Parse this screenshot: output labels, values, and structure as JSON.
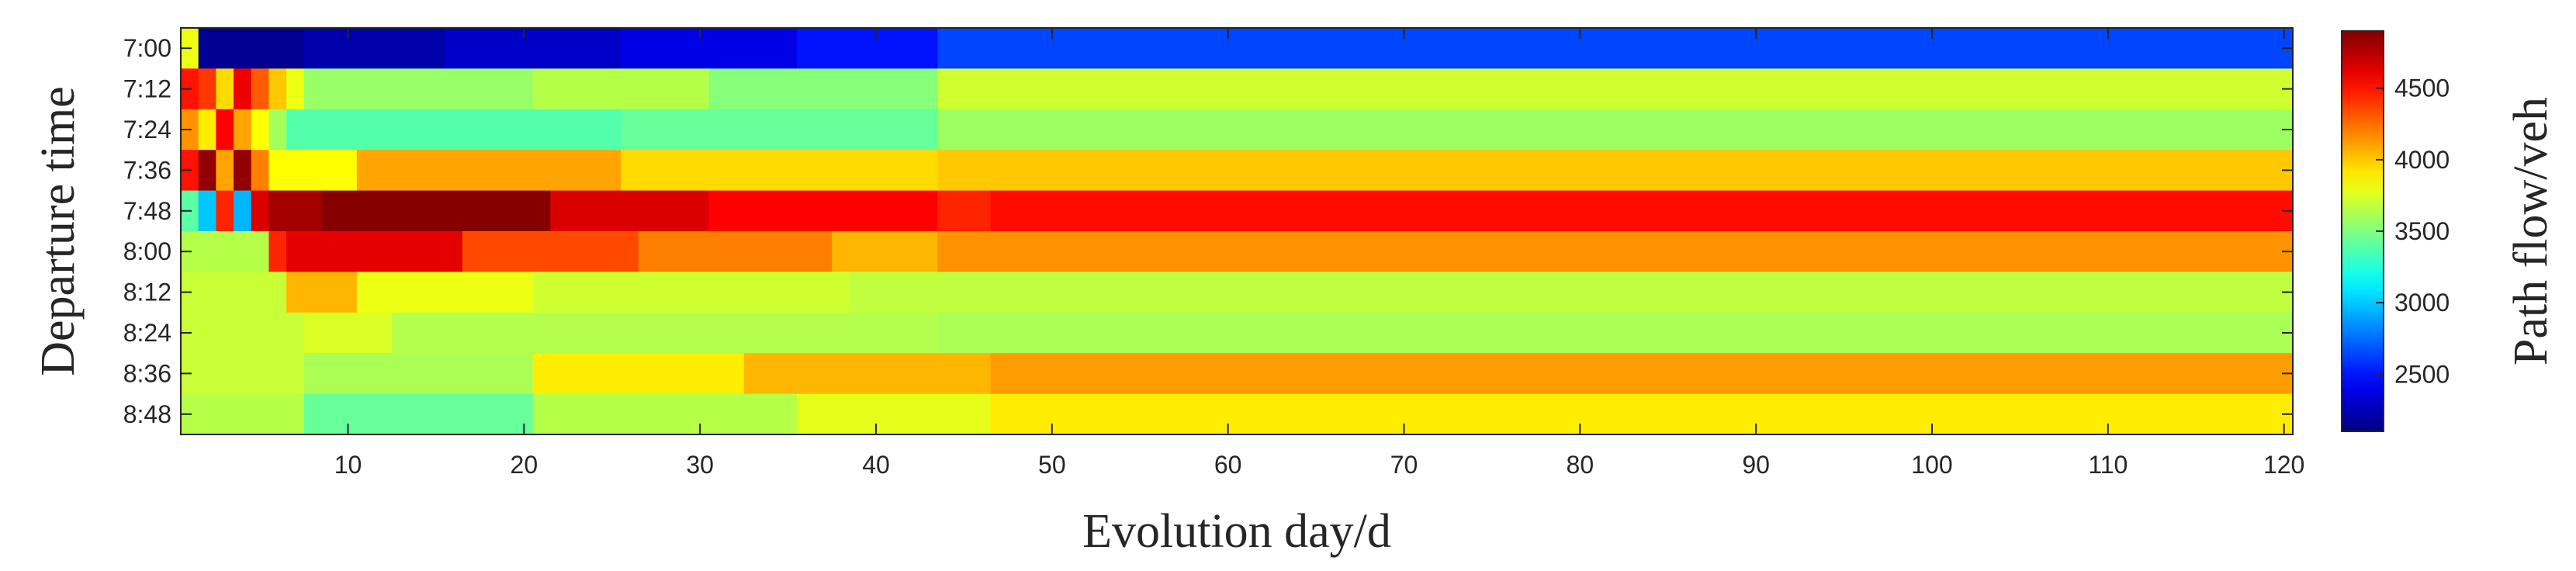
{
  "chart_data": {
    "type": "heatmap",
    "xlabel": "Evolution day/d",
    "ylabel": "Departure time",
    "xlim": [
      0.5,
      120.5
    ],
    "x_ticks": [
      10,
      20,
      30,
      40,
      50,
      60,
      70,
      80,
      90,
      100,
      110,
      120
    ],
    "y_categories": [
      "7:00",
      "7:12",
      "7:24",
      "7:36",
      "7:48",
      "8:00",
      "8:12",
      "8:24",
      "8:36",
      "8:48"
    ],
    "colorbar": {
      "label": "Path flow/veh",
      "colormap": "jet",
      "range": [
        2100,
        4900
      ],
      "ticks": [
        2500,
        3000,
        3500,
        4000,
        4500
      ]
    },
    "grid": false,
    "series": [
      {
        "y": "7:00",
        "segments": [
          [
            1,
            1,
            3800
          ],
          [
            2,
            7,
            2150
          ],
          [
            8,
            15,
            2220
          ],
          [
            16,
            25,
            2300
          ],
          [
            26,
            35,
            2380
          ],
          [
            36,
            43,
            2500
          ],
          [
            44,
            120,
            2640
          ]
        ]
      },
      {
        "y": "7:12",
        "segments": [
          [
            1,
            1,
            4500
          ],
          [
            2,
            2,
            4400
          ],
          [
            3,
            3,
            3950
          ],
          [
            4,
            4,
            4600
          ],
          [
            5,
            5,
            4300
          ],
          [
            6,
            6,
            4000
          ],
          [
            7,
            7,
            3800
          ],
          [
            8,
            20,
            3570
          ],
          [
            21,
            30,
            3650
          ],
          [
            31,
            43,
            3520
          ],
          [
            44,
            120,
            3720
          ]
        ]
      },
      {
        "y": "7:24",
        "segments": [
          [
            1,
            1,
            4150
          ],
          [
            2,
            2,
            3900
          ],
          [
            3,
            3,
            4550
          ],
          [
            4,
            4,
            4100
          ],
          [
            5,
            5,
            3850
          ],
          [
            6,
            6,
            3600
          ],
          [
            7,
            25,
            3380
          ],
          [
            26,
            43,
            3430
          ],
          [
            44,
            120,
            3580
          ]
        ]
      },
      {
        "y": "7:36",
        "segments": [
          [
            1,
            1,
            4500
          ],
          [
            2,
            2,
            4850
          ],
          [
            3,
            3,
            4100
          ],
          [
            4,
            4,
            4850
          ],
          [
            5,
            5,
            4200
          ],
          [
            6,
            10,
            3850
          ],
          [
            11,
            25,
            4100
          ],
          [
            26,
            43,
            3950
          ],
          [
            44,
            120,
            4000
          ]
        ]
      },
      {
        "y": "7:48",
        "segments": [
          [
            1,
            1,
            3400
          ],
          [
            2,
            2,
            3000
          ],
          [
            3,
            3,
            4450
          ],
          [
            4,
            4,
            2950
          ],
          [
            5,
            5,
            4650
          ],
          [
            6,
            8,
            4800
          ],
          [
            9,
            21,
            4880
          ],
          [
            22,
            30,
            4650
          ],
          [
            31,
            43,
            4550
          ],
          [
            44,
            46,
            4450
          ],
          [
            47,
            120,
            4520
          ]
        ]
      },
      {
        "y": "8:00",
        "segments": [
          [
            1,
            5,
            3650
          ],
          [
            6,
            6,
            4450
          ],
          [
            7,
            16,
            4620
          ],
          [
            17,
            26,
            4350
          ],
          [
            27,
            37,
            4200
          ],
          [
            38,
            43,
            4050
          ],
          [
            44,
            120,
            4150
          ]
        ]
      },
      {
        "y": "8:12",
        "segments": [
          [
            1,
            6,
            3700
          ],
          [
            7,
            10,
            4050
          ],
          [
            11,
            20,
            3800
          ],
          [
            21,
            38,
            3720
          ],
          [
            39,
            120,
            3680
          ]
        ]
      },
      {
        "y": "8:24",
        "segments": [
          [
            1,
            7,
            3700
          ],
          [
            8,
            12,
            3750
          ],
          [
            13,
            43,
            3640
          ],
          [
            44,
            120,
            3620
          ]
        ]
      },
      {
        "y": "8:36",
        "segments": [
          [
            1,
            7,
            3700
          ],
          [
            8,
            20,
            3620
          ],
          [
            21,
            32,
            3900
          ],
          [
            33,
            46,
            4050
          ],
          [
            47,
            120,
            4120
          ]
        ]
      },
      {
        "y": "8:48",
        "segments": [
          [
            1,
            7,
            3650
          ],
          [
            8,
            20,
            3430
          ],
          [
            21,
            35,
            3650
          ],
          [
            36,
            46,
            3780
          ],
          [
            47,
            120,
            3900
          ]
        ]
      }
    ]
  }
}
